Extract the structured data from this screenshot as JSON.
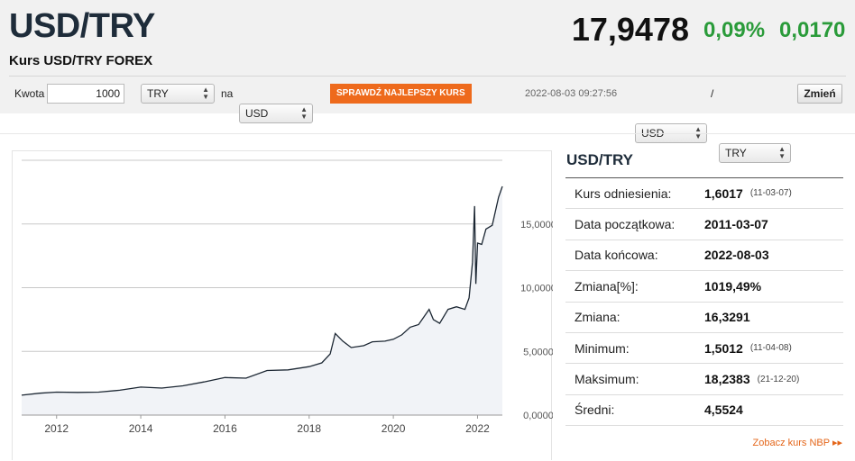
{
  "header": {
    "pair": "USD/TRY",
    "subtitle": "Kurs USD/TRY FOREX",
    "price": "17,9478",
    "change_pct": "0,09%",
    "change_abs": "0,0170"
  },
  "converter": {
    "amount_label": "Kwota",
    "amount_value": "1000",
    "from_currency": "TRY",
    "na_label": "na",
    "to_currency": "USD",
    "best_rate_label": "SPRAWDŹ NAJLEPSZY KURS",
    "timestamp": "2022-08-03 09:27:56",
    "pair_left": "USD",
    "pair_sep": "/",
    "pair_right": "TRY",
    "change_button": "Zmień"
  },
  "stats": {
    "title": "USD/TRY",
    "rows": [
      {
        "label": "Kurs odniesienia:",
        "value": "1,6017",
        "date": "(11-03-07)"
      },
      {
        "label": "Data początkowa:",
        "value": "2011-03-07",
        "date": ""
      },
      {
        "label": "Data końcowa:",
        "value": "2022-08-03",
        "date": ""
      },
      {
        "label": "Zmiana[%]:",
        "value": "1019,49%",
        "date": ""
      },
      {
        "label": "Zmiana:",
        "value": "16,3291",
        "date": ""
      },
      {
        "label": "Minimum:",
        "value": "1,5012",
        "date": "(11-04-08)"
      },
      {
        "label": "Maksimum:",
        "value": "18,2383",
        "date": "(21-12-20)"
      },
      {
        "label": "Średni:",
        "value": "4,5524",
        "date": ""
      }
    ],
    "nbp_link": "Zobacz kurs NBP ▸▸"
  },
  "chart_data": {
    "type": "area",
    "x_ticks": [
      "2012",
      "2014",
      "2016",
      "2018",
      "2020",
      "2022"
    ],
    "y_ticks": [
      "0,0000",
      "5,0000",
      "10,0000",
      "15,0000"
    ],
    "ylim": [
      0,
      20
    ],
    "xlim": [
      2011.17,
      2022.59
    ],
    "grid": true,
    "line_color": "#1c2733",
    "fill_color": "#f1f3f7",
    "x": [
      2011.17,
      2011.6,
      2012.0,
      2012.5,
      2013.0,
      2013.5,
      2014.0,
      2014.5,
      2015.0,
      2015.5,
      2016.0,
      2016.5,
      2017.0,
      2017.5,
      2018.0,
      2018.3,
      2018.5,
      2018.62,
      2018.8,
      2019.0,
      2019.3,
      2019.5,
      2019.8,
      2020.0,
      2020.2,
      2020.4,
      2020.6,
      2020.85,
      2020.95,
      2021.1,
      2021.3,
      2021.5,
      2021.7,
      2021.8,
      2021.88,
      2021.93,
      2021.96,
      2022.0,
      2022.1,
      2022.2,
      2022.35,
      2022.5,
      2022.59
    ],
    "y": [
      1.56,
      1.72,
      1.8,
      1.78,
      1.8,
      1.95,
      2.2,
      2.12,
      2.3,
      2.6,
      2.95,
      2.9,
      3.5,
      3.55,
      3.8,
      4.1,
      4.8,
      6.4,
      5.8,
      5.3,
      5.45,
      5.75,
      5.8,
      5.95,
      6.3,
      6.9,
      7.1,
      8.3,
      7.5,
      7.2,
      8.3,
      8.5,
      8.3,
      9.2,
      12.0,
      16.4,
      10.3,
      13.5,
      13.4,
      14.6,
      14.9,
      17.1,
      17.95
    ]
  }
}
